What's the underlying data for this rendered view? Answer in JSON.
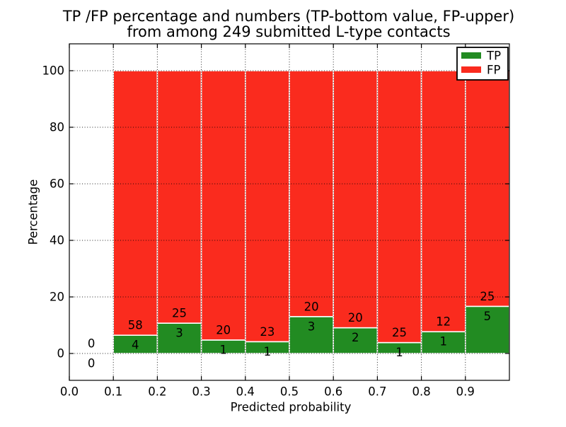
{
  "chart_data": {
    "type": "bar",
    "stacked_to_percent": true,
    "title_lines": [
      "TP /FP percentage and numbers (TP-bottom value, FP-upper)",
      "from among 249 submitted L-type contacts"
    ],
    "xlabel": "Predicted probability",
    "ylabel": "Percentage",
    "x_tick_labels": [
      "0.0",
      "0.1",
      "0.2",
      "0.3",
      "0.4",
      "0.5",
      "0.6",
      "0.7",
      "0.8",
      "0.9"
    ],
    "x_tick_values": [
      0,
      0.1,
      0.2,
      0.3,
      0.4,
      0.5,
      0.6,
      0.7,
      0.8,
      0.9
    ],
    "y_ticks": [
      0,
      20,
      40,
      60,
      80,
      100
    ],
    "xlim": [
      0,
      1.0
    ],
    "ylim": [
      -9.5,
      109.5
    ],
    "bin_width": 0.1,
    "bin_starts": [
      0.0,
      0.1,
      0.2,
      0.3,
      0.4,
      0.5,
      0.6,
      0.7,
      0.8,
      0.9
    ],
    "series": [
      {
        "name": "TP",
        "color": "#228b22",
        "counts": [
          0,
          4,
          3,
          1,
          1,
          3,
          2,
          1,
          1,
          5
        ]
      },
      {
        "name": "FP",
        "color": "#fa2b1e",
        "counts": [
          0,
          58,
          25,
          20,
          23,
          20,
          20,
          25,
          12,
          25
        ]
      }
    ],
    "tp_percent_per_bin": [
      0,
      6.5,
      10.7,
      4.8,
      4.2,
      13.0,
      9.1,
      3.8,
      7.7,
      16.7
    ],
    "annotation_scheme": "FP count above TP/FP boundary, TP count below boundary",
    "legend": {
      "position": "upper right"
    },
    "grid": {
      "linestyle": "dotted",
      "drawn_above_bars": true
    }
  }
}
